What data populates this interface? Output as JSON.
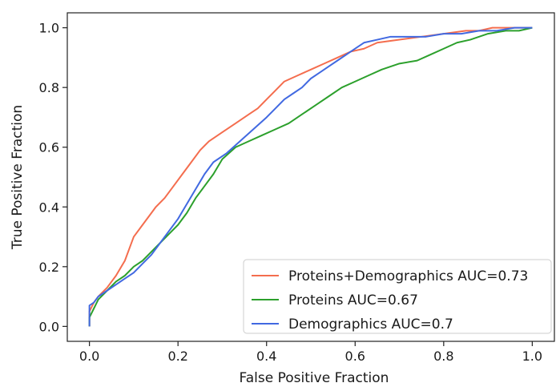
{
  "chart_data": {
    "type": "line",
    "title": "",
    "xlabel": "False Positive Fraction",
    "ylabel": "True Positive Fraction",
    "xlim": [
      -0.05,
      1.05
    ],
    "ylim": [
      -0.05,
      1.05
    ],
    "xticks": [
      0.0,
      0.2,
      0.4,
      0.6,
      0.8,
      1.0
    ],
    "xtick_labels": [
      "0.0",
      "0.2",
      "0.4",
      "0.6",
      "0.8",
      "1.0"
    ],
    "yticks": [
      0.0,
      0.2,
      0.4,
      0.6,
      0.8,
      1.0
    ],
    "ytick_labels": [
      "0.0",
      "0.2",
      "0.4",
      "0.6",
      "0.8",
      "1.0"
    ],
    "grid": false,
    "legend_position": "lower-right",
    "series": [
      {
        "name": "Proteins+Demographics AUC=0.73",
        "color": "#f46d4e",
        "x": [
          0.0,
          0.0,
          0.01,
          0.02,
          0.04,
          0.06,
          0.08,
          0.09,
          0.1,
          0.12,
          0.14,
          0.15,
          0.17,
          0.19,
          0.21,
          0.23,
          0.25,
          0.27,
          0.3,
          0.33,
          0.36,
          0.38,
          0.4,
          0.42,
          0.44,
          0.47,
          0.5,
          0.53,
          0.56,
          0.59,
          0.62,
          0.65,
          0.7,
          0.75,
          0.8,
          0.85,
          0.88,
          0.91,
          0.94,
          0.97,
          1.0
        ],
        "y": [
          0.0,
          0.05,
          0.08,
          0.1,
          0.13,
          0.17,
          0.22,
          0.26,
          0.3,
          0.34,
          0.38,
          0.4,
          0.43,
          0.47,
          0.51,
          0.55,
          0.59,
          0.62,
          0.65,
          0.68,
          0.71,
          0.73,
          0.76,
          0.79,
          0.82,
          0.84,
          0.86,
          0.88,
          0.9,
          0.92,
          0.93,
          0.95,
          0.96,
          0.97,
          0.98,
          0.99,
          0.99,
          1.0,
          1.0,
          1.0,
          1.0
        ]
      },
      {
        "name": "Proteins AUC=0.67",
        "color": "#2ca02c",
        "x": [
          0.0,
          0.0,
          0.01,
          0.02,
          0.04,
          0.06,
          0.08,
          0.1,
          0.12,
          0.14,
          0.16,
          0.18,
          0.2,
          0.22,
          0.24,
          0.26,
          0.28,
          0.3,
          0.33,
          0.36,
          0.39,
          0.42,
          0.45,
          0.48,
          0.51,
          0.54,
          0.57,
          0.6,
          0.63,
          0.66,
          0.7,
          0.74,
          0.77,
          0.8,
          0.83,
          0.86,
          0.9,
          0.94,
          0.97,
          1.0
        ],
        "y": [
          0.0,
          0.03,
          0.06,
          0.09,
          0.12,
          0.15,
          0.17,
          0.2,
          0.22,
          0.25,
          0.28,
          0.31,
          0.34,
          0.38,
          0.43,
          0.47,
          0.51,
          0.56,
          0.6,
          0.62,
          0.64,
          0.66,
          0.68,
          0.71,
          0.74,
          0.77,
          0.8,
          0.82,
          0.84,
          0.86,
          0.88,
          0.89,
          0.91,
          0.93,
          0.95,
          0.96,
          0.98,
          0.99,
          0.99,
          1.0
        ]
      },
      {
        "name": "Demographics AUC=0.7",
        "color": "#4169e1",
        "x": [
          0.0,
          0.0,
          0.01,
          0.02,
          0.04,
          0.06,
          0.08,
          0.1,
          0.12,
          0.14,
          0.16,
          0.18,
          0.2,
          0.22,
          0.24,
          0.26,
          0.28,
          0.31,
          0.34,
          0.37,
          0.4,
          0.42,
          0.44,
          0.46,
          0.48,
          0.5,
          0.52,
          0.54,
          0.56,
          0.58,
          0.6,
          0.62,
          0.65,
          0.68,
          0.72,
          0.76,
          0.8,
          0.84,
          0.88,
          0.92,
          0.96,
          1.0
        ],
        "y": [
          0.0,
          0.07,
          0.08,
          0.1,
          0.12,
          0.14,
          0.16,
          0.18,
          0.21,
          0.24,
          0.28,
          0.32,
          0.36,
          0.41,
          0.46,
          0.51,
          0.55,
          0.58,
          0.62,
          0.66,
          0.7,
          0.73,
          0.76,
          0.78,
          0.8,
          0.83,
          0.85,
          0.87,
          0.89,
          0.91,
          0.93,
          0.95,
          0.96,
          0.97,
          0.97,
          0.97,
          0.98,
          0.98,
          0.99,
          0.99,
          1.0,
          1.0
        ]
      }
    ]
  }
}
